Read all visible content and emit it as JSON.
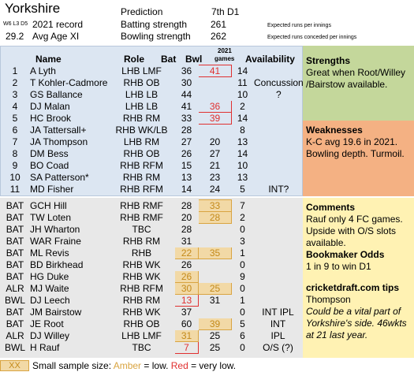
{
  "team": "Yorkshire",
  "header": {
    "record_prefix": "W6 L3 D5",
    "record_value": "2021 record",
    "avg_age": "29.2",
    "avg_age_label": "Avg Age XI",
    "prediction_label": "Prediction",
    "prediction_value": "7th D1",
    "batting_label": "Batting strength",
    "batting_value": "261",
    "bowling_label": "Bowling strength",
    "bowling_value": "262",
    "batting_note": "Expected runs per innings",
    "bowling_note": "Expected runs conceded per innings"
  },
  "columns": {
    "name": "Name",
    "role": "Role",
    "bat": "Bat",
    "bwl": "Bwl",
    "games_line1": "2021",
    "games_line2": "games",
    "availability": "Availability"
  },
  "starters": [
    {
      "id": "1",
      "name": "A Lyth",
      "role": "LHB LMF",
      "bat": "36",
      "bwl": "41",
      "games": "14",
      "avail": "",
      "bat_flag": "",
      "bwl_flag": "red"
    },
    {
      "id": "2",
      "name": "T Kohler-Cadmore",
      "role": "RHB OB",
      "bat": "30",
      "bwl": "",
      "games": "11",
      "avail": "Concussion",
      "bat_flag": "",
      "bwl_flag": ""
    },
    {
      "id": "3",
      "name": "GS Ballance",
      "role": "LHB LB",
      "bat": "44",
      "bwl": "",
      "games": "10",
      "avail": "?",
      "bat_flag": "",
      "bwl_flag": ""
    },
    {
      "id": "4",
      "name": "DJ Malan",
      "role": "LHB LB",
      "bat": "41",
      "bwl": "36",
      "games": "2",
      "avail": "",
      "bat_flag": "",
      "bwl_flag": "red"
    },
    {
      "id": "5",
      "name": "HC Brook",
      "role": "RHB RM",
      "bat": "33",
      "bwl": "39",
      "games": "14",
      "avail": "",
      "bat_flag": "",
      "bwl_flag": "red"
    },
    {
      "id": "6",
      "name": "JA Tattersall+",
      "role": "RHB WK/LB",
      "bat": "28",
      "bwl": "",
      "games": "8",
      "avail": "",
      "bat_flag": "",
      "bwl_flag": ""
    },
    {
      "id": "7",
      "name": "JA Thompson",
      "role": "LHB RM",
      "bat": "27",
      "bwl": "20",
      "games": "13",
      "avail": "",
      "bat_flag": "",
      "bwl_flag": ""
    },
    {
      "id": "8",
      "name": "DM Bess",
      "role": "RHB OB",
      "bat": "26",
      "bwl": "27",
      "games": "14",
      "avail": "",
      "bat_flag": "",
      "bwl_flag": ""
    },
    {
      "id": "9",
      "name": "BO Coad",
      "role": "RHB RFM",
      "bat": "15",
      "bwl": "21",
      "games": "10",
      "avail": "",
      "bat_flag": "",
      "bwl_flag": ""
    },
    {
      "id": "10",
      "name": "SA Patterson*",
      "role": "RHB RM",
      "bat": "13",
      "bwl": "23",
      "games": "13",
      "avail": "",
      "bat_flag": "",
      "bwl_flag": ""
    },
    {
      "id": "11",
      "name": "MD Fisher",
      "role": "RHB RFM",
      "bat": "14",
      "bwl": "24",
      "games": "5",
      "avail": "INT?",
      "bat_flag": "",
      "bwl_flag": ""
    }
  ],
  "reserves": [
    {
      "id": "BAT",
      "name": "GCH Hill",
      "role": "RHB RMF",
      "bat": "28",
      "bwl": "33",
      "games": "7",
      "avail": "",
      "bat_flag": "",
      "bwl_flag": "amber"
    },
    {
      "id": "BAT",
      "name": "TW Loten",
      "role": "RHB RMF",
      "bat": "20",
      "bwl": "28",
      "games": "2",
      "avail": "",
      "bat_flag": "",
      "bwl_flag": "amber"
    },
    {
      "id": "BAT",
      "name": "JH Wharton",
      "role": "TBC",
      "bat": "28",
      "bwl": "",
      "games": "0",
      "avail": "",
      "bat_flag": "",
      "bwl_flag": ""
    },
    {
      "id": "BAT",
      "name": "WAR Fraine",
      "role": "RHB RM",
      "bat": "31",
      "bwl": "",
      "games": "3",
      "avail": "",
      "bat_flag": "",
      "bwl_flag": ""
    },
    {
      "id": "BAT",
      "name": "ML Revis",
      "role": "RHB",
      "bat": "22",
      "bwl": "35",
      "games": "1",
      "avail": "",
      "bat_flag": "amber",
      "bwl_flag": "amber"
    },
    {
      "id": "BAT",
      "name": "BD Birkhead",
      "role": "RHB WK",
      "bat": "26",
      "bwl": "",
      "games": "0",
      "avail": "",
      "bat_flag": "",
      "bwl_flag": ""
    },
    {
      "id": "BAT",
      "name": "HG Duke",
      "role": "RHB WK",
      "bat": "26",
      "bwl": "",
      "games": "9",
      "avail": "",
      "bat_flag": "amber",
      "bwl_flag": ""
    },
    {
      "id": "ALR",
      "name": "MJ Waite",
      "role": "RHB RFM",
      "bat": "30",
      "bwl": "25",
      "games": "0",
      "avail": "",
      "bat_flag": "amber",
      "bwl_flag": "amber"
    },
    {
      "id": "BWL",
      "name": "DJ Leech",
      "role": "RHB RM",
      "bat": "13",
      "bwl": "31",
      "games": "1",
      "avail": "",
      "bat_flag": "red",
      "bwl_flag": ""
    },
    {
      "id": "BAT",
      "name": "JM Bairstow",
      "role": "RHB WK",
      "bat": "37",
      "bwl": "",
      "games": "0",
      "avail": "INT IPL",
      "bat_flag": "",
      "bwl_flag": ""
    },
    {
      "id": "BAT",
      "name": "JE Root",
      "role": "RHB OB",
      "bat": "60",
      "bwl": "39",
      "games": "5",
      "avail": "INT",
      "bat_flag": "",
      "bwl_flag": "amber"
    },
    {
      "id": "ALR",
      "name": "DJ Willey",
      "role": "LHB LMF",
      "bat": "31",
      "bwl": "25",
      "games": "6",
      "avail": "IPL",
      "bat_flag": "amber",
      "bwl_flag": ""
    },
    {
      "id": "BWL",
      "name": "H Rauf",
      "role": "TBC",
      "bat": "7",
      "bwl": "25",
      "games": "0",
      "avail": "O/S (?)",
      "bat_flag": "red",
      "bwl_flag": ""
    }
  ],
  "strengths": {
    "heading": "Strengths",
    "text": "Great when Root/Willey /Bairstow available."
  },
  "weaknesses": {
    "heading": "Weaknesses",
    "text": "K-C avg 19.6 in 2021. Bowling depth. Turmoil."
  },
  "comments": {
    "heading": "Comments",
    "text": "Rauf only 4 FC games. Upside with O/S slots available.",
    "odds_heading": "Bookmaker Odds",
    "odds_text": "1 in 9 to win D1",
    "tips_heading": "cricketdraft.com tips",
    "tips_name": "Thompson",
    "tips_text": "Could be a vital part of Yorkshire's side. 46wkts at 21 last year."
  },
  "legend": {
    "swatch": "XX",
    "prefix": "Small sample size:",
    "amber": "Amber",
    "mid": " = low. ",
    "red": "Red",
    "suffix": " = very low."
  },
  "colors": {
    "blue_panel": "#dce6f2",
    "grey_panel": "#e8e8e8",
    "green_panel": "#c4d79b",
    "orange_panel": "#f4b183",
    "yellow_panel": "#fff2b3",
    "amber": "#d9a441",
    "red": "#e03030"
  }
}
